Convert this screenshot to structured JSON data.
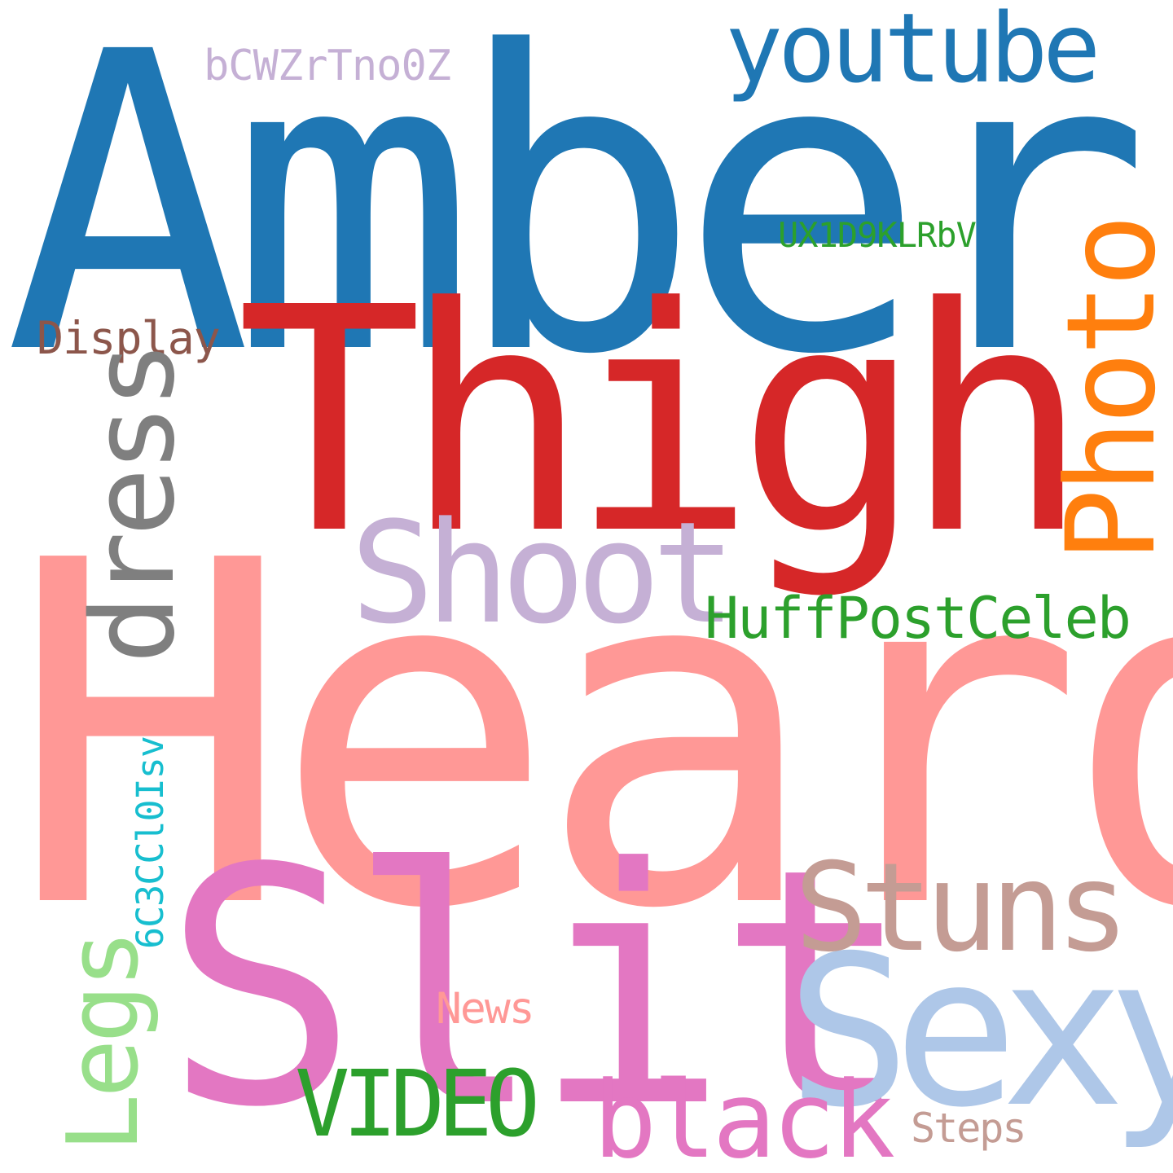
{
  "words": [
    {
      "id": "amber",
      "text": "Amber",
      "color": "#1f77b4",
      "orientation": "horizontal"
    },
    {
      "id": "heard",
      "text": "Heard",
      "color": "#ff9896",
      "orientation": "horizontal"
    },
    {
      "id": "thigh",
      "text": "Thigh",
      "color": "#d62728",
      "orientation": "horizontal"
    },
    {
      "id": "slit",
      "text": "Slit",
      "color": "#e377c2",
      "orientation": "horizontal"
    },
    {
      "id": "sexy",
      "text": "Sexy",
      "color": "#aec7e8",
      "orientation": "horizontal"
    },
    {
      "id": "shoot",
      "text": "Shoot",
      "color": "#c5b0d5",
      "orientation": "horizontal"
    },
    {
      "id": "stuns",
      "text": "Stuns",
      "color": "#c49c94",
      "orientation": "horizontal"
    },
    {
      "id": "youtube",
      "text": "youtube",
      "color": "#1f77b4",
      "orientation": "horizontal"
    },
    {
      "id": "video",
      "text": "VIDEO",
      "color": "#2ca02c",
      "orientation": "horizontal"
    },
    {
      "id": "black",
      "text": "black",
      "color": "#e377c2",
      "orientation": "horizontal"
    },
    {
      "id": "huff",
      "text": "HuffPostCeleb",
      "color": "#2ca02c",
      "orientation": "horizontal"
    },
    {
      "id": "bcw",
      "text": "bCWZrTno0Z",
      "color": "#c5b0d5",
      "orientation": "horizontal"
    },
    {
      "id": "ux",
      "text": "UX1D9KLRbV",
      "color": "#2ca02c",
      "orientation": "horizontal"
    },
    {
      "id": "display",
      "text": "Display",
      "color": "#8c564b",
      "orientation": "horizontal"
    },
    {
      "id": "news",
      "text": "News",
      "color": "#ff9896",
      "orientation": "horizontal"
    },
    {
      "id": "steps",
      "text": "Steps",
      "color": "#c49c94",
      "orientation": "horizontal"
    },
    {
      "id": "photo",
      "text": "Photo",
      "color": "#ff7f0e",
      "orientation": "vertical"
    },
    {
      "id": "dress",
      "text": "dress",
      "color": "#7f7f7f",
      "orientation": "vertical"
    },
    {
      "id": "legs",
      "text": "Legs",
      "color": "#98df8a",
      "orientation": "vertical"
    },
    {
      "id": "6c3",
      "text": "6C3CCl0Isv",
      "color": "#17becf",
      "orientation": "vertical"
    }
  ]
}
